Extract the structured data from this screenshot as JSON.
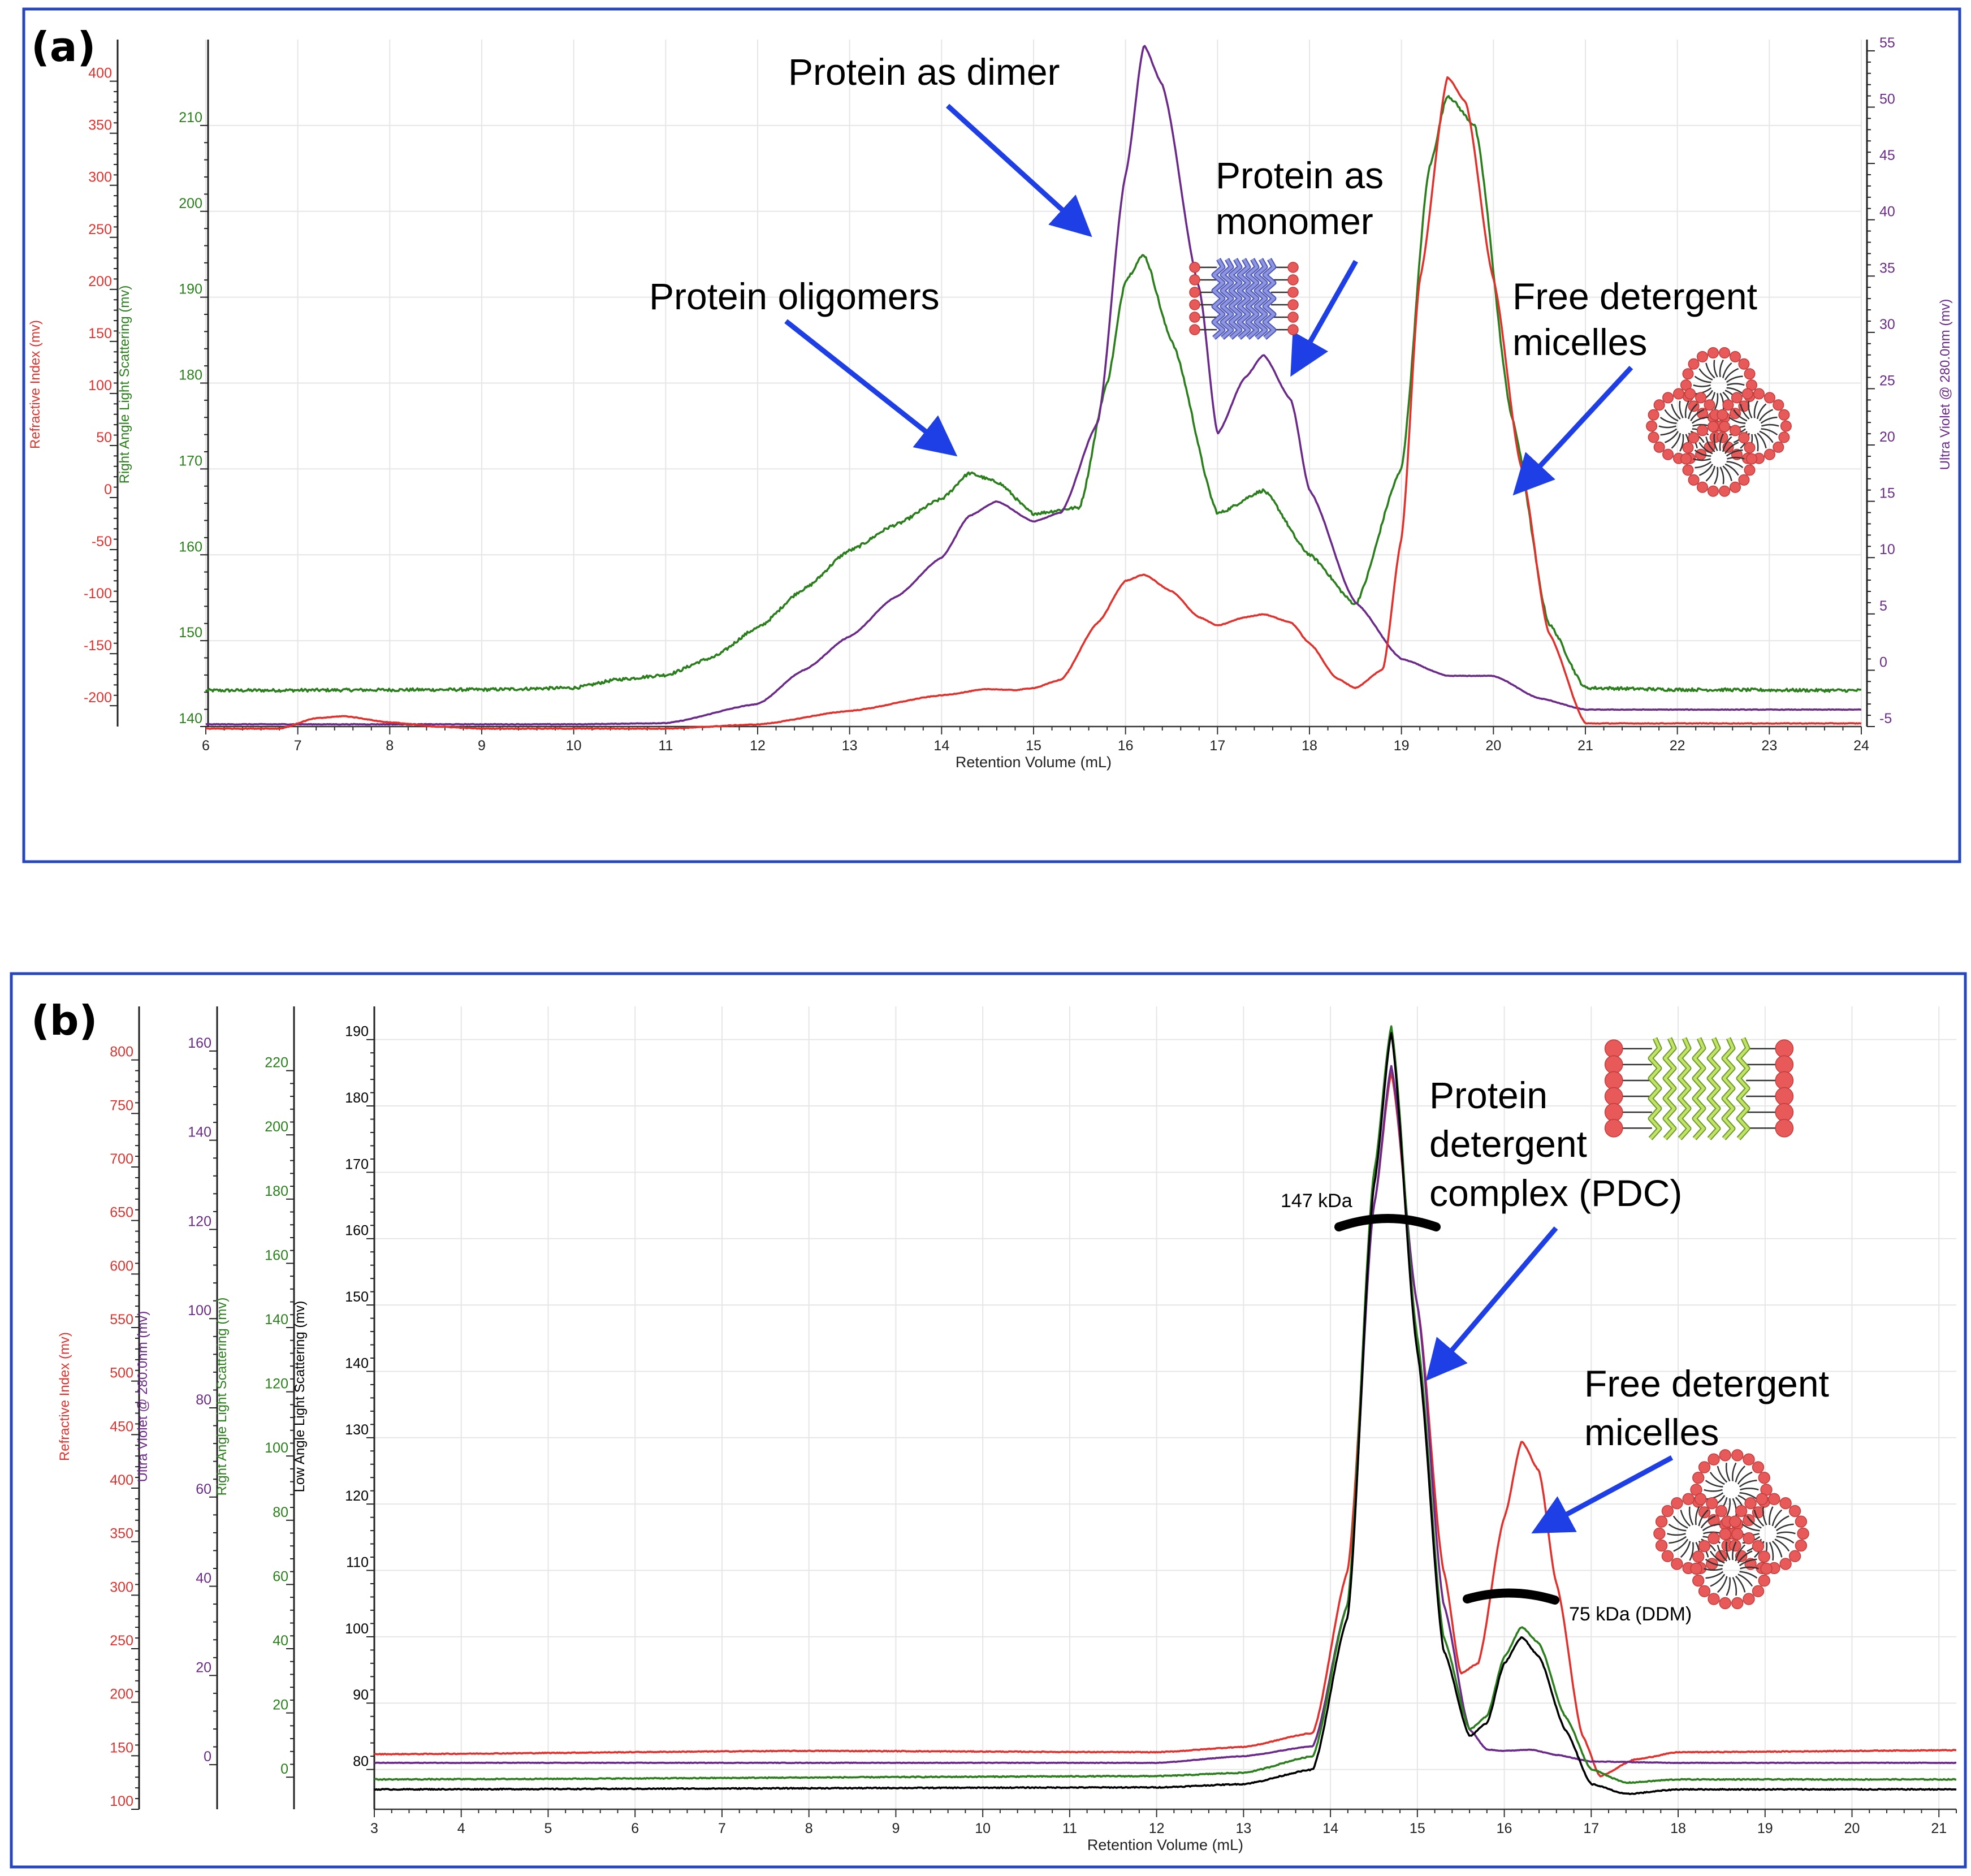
{
  "panels": {
    "a": {
      "label": "(a)"
    },
    "b": {
      "label": "(b)"
    }
  },
  "colors": {
    "frame": "#2446c0",
    "ri": "#e0312c",
    "rals": "#2a7f1c",
    "uv": "#6b2a8a",
    "lals": "#000000",
    "arrow": "#1f3fe6",
    "grid": "#e3e3e3"
  },
  "icons": {
    "a_monomer": "protein-in-micelle-icon",
    "a_micelles": "detergent-micelles-icon",
    "b_pdc": "protein-detergent-complex-icon",
    "b_micelles": "detergent-micelles-icon"
  },
  "chart_data": [
    {
      "type": "line",
      "panel": "a",
      "title": "",
      "xlabel": "Retention Volume (mL)",
      "xlim": [
        6,
        24
      ],
      "xticks": [
        6,
        7,
        8,
        9,
        10,
        11,
        12,
        13,
        14,
        15,
        16,
        17,
        18,
        19,
        20,
        21,
        22,
        23,
        24
      ],
      "grid": true,
      "axes": [
        {
          "id": "ri",
          "label": "Refractive Index (mv)",
          "side": "left",
          "color": "#e0312c",
          "ticks": [
            -200,
            -150,
            -100,
            -50,
            0,
            50,
            100,
            150,
            200,
            250,
            300,
            350,
            400
          ],
          "ylim": [
            -220,
            440
          ]
        },
        {
          "id": "rals",
          "label": "Right Angle Light Scattering (mv)",
          "side": "left",
          "color": "#2a7f1c",
          "ticks": [
            140,
            150,
            160,
            170,
            180,
            190,
            200,
            210
          ],
          "ylim": [
            140,
            220
          ]
        },
        {
          "id": "uv",
          "label": "Ultra Violet @ 280.0nm (mv)",
          "side": "right",
          "color": "#6b2a8a",
          "ticks": [
            -5,
            0,
            5,
            10,
            15,
            20,
            25,
            30,
            35,
            40,
            45,
            50,
            55
          ],
          "ylim": [
            -5,
            56
          ]
        }
      ],
      "series": [
        {
          "axis": "rals",
          "color": "#2a7f1c",
          "noise": 0.35,
          "x": [
            6,
            9,
            10,
            10.5,
            11,
            11.5,
            12,
            12.5,
            13,
            13.5,
            14,
            14.3,
            14.6,
            15,
            15.5,
            15.8,
            16,
            16.2,
            16.5,
            17,
            17.5,
            18,
            18.5,
            19,
            19.3,
            19.5,
            19.8,
            20.2,
            20.6,
            21,
            22,
            24
          ],
          "y": [
            144.2,
            144.3,
            144.5,
            145.5,
            146,
            148,
            151.5,
            156,
            160.5,
            163.5,
            166.5,
            169.5,
            168.5,
            164.8,
            165.5,
            180,
            192,
            195,
            185,
            164.8,
            167.5,
            160,
            154.2,
            170,
            205,
            213.5,
            210,
            176,
            152,
            144.5,
            144.3,
            144.2
          ]
        },
        {
          "axis": "uv",
          "color": "#6b2a8a",
          "noise": 0.05,
          "x": [
            6,
            7,
            8,
            9,
            10,
            11,
            12,
            12.5,
            13,
            13.5,
            14,
            14.3,
            14.6,
            15,
            15.3,
            15.7,
            16,
            16.2,
            16.4,
            16.8,
            17,
            17.3,
            17.5,
            17.8,
            18,
            18.5,
            19,
            19.5,
            20,
            20.5,
            21,
            24
          ],
          "y": [
            -4.8,
            -4.8,
            -4.8,
            -4.8,
            -4.8,
            -4.7,
            -3,
            0,
            3,
            6.5,
            10,
            13.7,
            15,
            13.2,
            14,
            22,
            44,
            55.5,
            52,
            34,
            21,
            26,
            28,
            24,
            16,
            6,
            1,
            -0.5,
            -0.5,
            -2.5,
            -3.5,
            -3.5
          ]
        },
        {
          "axis": "ri",
          "color": "#e0312c",
          "noise": 0.6,
          "x": [
            6,
            6.8,
            7.2,
            7.5,
            8,
            8.5,
            9,
            10,
            11,
            12,
            13,
            14,
            14.5,
            14.8,
            15,
            15.3,
            15.7,
            16,
            16.2,
            16.5,
            16.8,
            17,
            17.3,
            17.5,
            17.8,
            18,
            18.3,
            18.5,
            18.8,
            19,
            19.2,
            19.5,
            19.7,
            20,
            20.3,
            20.6,
            21,
            24
          ],
          "y": [
            -222,
            -222,
            -212,
            -210,
            -216,
            -220,
            -222,
            -222,
            -222,
            -218,
            -205,
            -190,
            -184,
            -185,
            -183,
            -175,
            -120,
            -80,
            -74,
            -90,
            -115,
            -123,
            -115,
            -112,
            -120,
            -140,
            -174,
            -183,
            -165,
            -40,
            210,
            404,
            380,
            210,
            30,
            -130,
            -217,
            -217
          ]
        }
      ],
      "annotations": [
        "Protein as dimer",
        "Protein as",
        "monomer",
        "Protein oligomers",
        "Free detergent",
        "micelles"
      ]
    },
    {
      "type": "line",
      "panel": "b",
      "title": "",
      "xlabel": "Retention Volume (mL)",
      "xlim": [
        3,
        21.2
      ],
      "xticks": [
        3,
        4,
        5,
        6,
        7,
        8,
        9,
        10,
        11,
        12,
        13,
        14,
        15,
        16,
        17,
        18,
        19,
        20,
        21
      ],
      "grid": true,
      "axes": [
        {
          "id": "ri",
          "label": "Refractive Index (mv)",
          "side": "left",
          "color": "#e0312c",
          "ticks": [
            100,
            150,
            200,
            250,
            300,
            350,
            400,
            450,
            500,
            550,
            600,
            650,
            700,
            750,
            800
          ],
          "ylim": [
            100,
            850
          ]
        },
        {
          "id": "uv",
          "label": "Ultra Violet @ 280.0nm (mv)",
          "side": "left",
          "color": "#6b2a8a",
          "ticks": [
            0,
            20,
            40,
            60,
            80,
            100,
            120,
            140,
            160
          ],
          "ylim": [
            -10,
            170
          ]
        },
        {
          "id": "rals",
          "label": "Right Angle Light Scattering (mv)",
          "side": "left",
          "color": "#2a7f1c",
          "ticks": [
            0,
            20,
            40,
            60,
            80,
            100,
            120,
            140,
            160,
            180,
            200,
            220
          ],
          "ylim": [
            -10,
            240
          ]
        },
        {
          "id": "lals",
          "label": "Low Angle Light Scattering (mv)",
          "side": "left",
          "color": "#000000",
          "ticks": [
            80,
            90,
            100,
            110,
            120,
            130,
            140,
            150,
            160,
            170,
            180,
            190
          ],
          "ylim": [
            74,
            195
          ]
        }
      ],
      "series": [
        {
          "axis": "lals",
          "color": "#e0312c",
          "noise": 0.12,
          "x": [
            3,
            8,
            12,
            13,
            13.8,
            14.2,
            14.5,
            14.7,
            15,
            15.3,
            15.5,
            15.7,
            16,
            16.2,
            16.4,
            16.6,
            16.9,
            17.1,
            17.5,
            18,
            21.2
          ],
          "y": [
            82.3,
            82.8,
            82.6,
            83.4,
            85.5,
            110,
            165,
            185,
            150,
            110,
            94.5,
            96,
            118,
            129.5,
            125,
            108,
            85,
            79,
            81.5,
            82.6,
            82.9
          ]
        },
        {
          "axis": "lals",
          "color": "#6b2a8a",
          "noise": 0.08,
          "x": [
            3,
            12,
            13,
            13.8,
            14.2,
            14.5,
            14.7,
            15,
            15.3,
            15.6,
            15.8,
            16,
            16.3,
            16.6,
            17,
            18,
            21.2
          ],
          "y": [
            81,
            81,
            82,
            83.5,
            105,
            165,
            186,
            150,
            105,
            86,
            83,
            82.8,
            83,
            82.2,
            81.2,
            81,
            81
          ]
        },
        {
          "axis": "lals",
          "color": "#2a7f1c",
          "noise": 0.15,
          "x": [
            3,
            12,
            13,
            13.8,
            14.2,
            14.5,
            14.7,
            15,
            15.3,
            15.6,
            15.8,
            16,
            16.2,
            16.4,
            16.7,
            17,
            17.4,
            18,
            21.2
          ],
          "y": [
            78.5,
            79,
            79.5,
            82,
            105,
            170,
            192,
            145,
            100,
            86,
            88,
            97,
            101.5,
            99,
            88,
            80,
            78,
            78.5,
            78.5
          ]
        },
        {
          "axis": "lals",
          "color": "#000000",
          "noise": 0.15,
          "x": [
            3,
            12,
            13,
            13.8,
            14.2,
            14.5,
            14.7,
            15,
            15.3,
            15.6,
            15.8,
            16,
            16.2,
            16.4,
            16.7,
            17,
            17.4,
            18,
            21.2
          ],
          "y": [
            77,
            77.3,
            77.8,
            80,
            103,
            168,
            191,
            143,
            98,
            85,
            87,
            96,
            100,
            97,
            86,
            77.8,
            76.3,
            77,
            77
          ]
        }
      ],
      "annotations": [
        "Protein",
        "detergent",
        "complex (PDC)",
        "Free detergent",
        "micelles",
        "147 kDa",
        "75 kDa (DDM)"
      ]
    }
  ]
}
